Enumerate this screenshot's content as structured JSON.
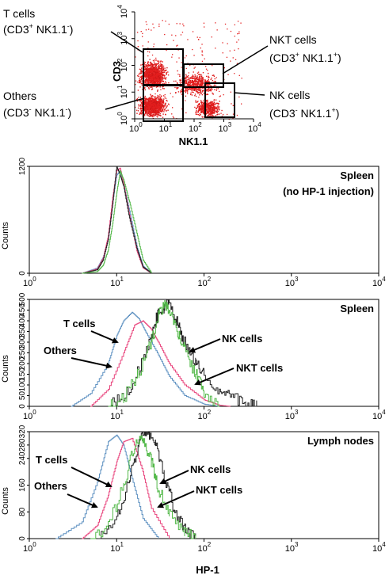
{
  "colors": {
    "t_cells": "#5b8fc0",
    "others": "#e8407a",
    "nk_cells": "#222222",
    "nkt_cells": "#52b848",
    "dots": "#e41f1f",
    "dots_dense": "#d01818"
  },
  "dot_plot": {
    "xlabel": "NK1.1",
    "ylabel": "CD3",
    "ticks": [
      "10",
      "10",
      "10",
      "10",
      "10"
    ],
    "tick_exponents": [
      "0",
      "1",
      "2",
      "3",
      "4"
    ],
    "gates": {
      "t_cells": {
        "name": "T cells",
        "pheno_pre": "(CD3",
        "pheno_sup1": "+",
        "pheno_mid": " NK1.1",
        "pheno_sup2": "-",
        "pheno_post": ")"
      },
      "others": {
        "name": "Others",
        "pheno_pre": "(CD3",
        "pheno_sup1": "-",
        "pheno_mid": " NK1.1",
        "pheno_sup2": "-",
        "pheno_post": ")"
      },
      "nkt_cells": {
        "name": "NKT cells",
        "pheno_pre": "(CD3",
        "pheno_sup1": "+",
        "pheno_mid": " NK1.1",
        "pheno_sup2": "+",
        "pheno_post": ")"
      },
      "nk_cells": {
        "name": "NK cells",
        "pheno_pre": "(CD3",
        "pheno_sup1": "-",
        "pheno_mid": " NK1.1",
        "pheno_sup2": "+",
        "pheno_post": ")"
      }
    }
  },
  "histograms": {
    "ylabel": "Counts",
    "xlabel": "HP-1",
    "xtick_base": "10",
    "xtick_exponents": [
      "0",
      "1",
      "2",
      "3",
      "4"
    ]
  },
  "chart_data": [
    {
      "type": "scatter",
      "title": "",
      "xlabel": "NK1.1",
      "ylabel": "CD3",
      "xscale": "log",
      "yscale": "log",
      "xlim": [
        1,
        10000
      ],
      "ylim": [
        1,
        10000
      ],
      "populations": [
        {
          "name": "T cells",
          "x_range": [
            1,
            15
          ],
          "y_range": [
            10,
            200
          ]
        },
        {
          "name": "Others",
          "x_range": [
            1,
            15
          ],
          "y_range": [
            1,
            10
          ]
        },
        {
          "name": "NKT cells",
          "x_range": [
            15,
            800
          ],
          "y_range": [
            6,
            70
          ]
        },
        {
          "name": "NK cells",
          "x_range": [
            80,
            1000
          ],
          "y_range": [
            1,
            7
          ]
        }
      ]
    },
    {
      "type": "line",
      "title": "Spleen",
      "subtitle": "(no HP-1 injection)",
      "xlabel": "",
      "ylabel": "Counts",
      "xscale": "log",
      "xlim": [
        1,
        10000
      ],
      "ylim": [
        0,
        1200
      ],
      "yticks": [
        "0",
        "1200"
      ],
      "series": [
        {
          "name": "T cells",
          "x": [
            4,
            6,
            7,
            8,
            9,
            10,
            11,
            12,
            14,
            17,
            20,
            25
          ],
          "y": [
            0,
            60,
            180,
            400,
            800,
            1100,
            1150,
            1000,
            700,
            300,
            80,
            0
          ]
        },
        {
          "name": "Others",
          "x": [
            4,
            6,
            7,
            8,
            9,
            10,
            11,
            12,
            14,
            17,
            20,
            25
          ],
          "y": [
            0,
            50,
            170,
            420,
            850,
            1150,
            1180,
            1000,
            650,
            250,
            60,
            0
          ]
        },
        {
          "name": "NK cells",
          "x": [
            4,
            6,
            7,
            8,
            9,
            10,
            11,
            12,
            14,
            17,
            20,
            25
          ],
          "y": [
            0,
            40,
            150,
            380,
            780,
            1200,
            1100,
            980,
            620,
            280,
            70,
            0
          ]
        },
        {
          "name": "NKT cells",
          "x": [
            4,
            6,
            7,
            8,
            9,
            10,
            11,
            12,
            14,
            17,
            20,
            25
          ],
          "y": [
            0,
            20,
            90,
            260,
            560,
            900,
            1150,
            1050,
            800,
            450,
            150,
            0
          ]
        }
      ]
    },
    {
      "type": "line",
      "title": "Spleen",
      "xlabel": "",
      "ylabel": "Counts",
      "xscale": "log",
      "xlim": [
        1,
        10000
      ],
      "ylim": [
        0,
        500
      ],
      "yticks": [
        "0",
        "50",
        "100",
        "150",
        "200",
        "250",
        "300",
        "350",
        "400",
        "450",
        "500"
      ],
      "series": [
        {
          "name": "T cells",
          "x": [
            3,
            5,
            8,
            10,
            12,
            15,
            18,
            22,
            30,
            40,
            60,
            100,
            150
          ],
          "y": [
            0,
            60,
            200,
            330,
            400,
            440,
            410,
            340,
            240,
            140,
            50,
            10,
            0
          ]
        },
        {
          "name": "Others",
          "x": [
            5,
            8,
            12,
            16,
            20,
            25,
            30,
            40,
            60,
            100,
            150,
            200
          ],
          "y": [
            0,
            80,
            250,
            380,
            400,
            360,
            300,
            200,
            100,
            30,
            5,
            0
          ]
        },
        {
          "name": "NK cells",
          "x": [
            8,
            12,
            18,
            25,
            30,
            35,
            40,
            50,
            60,
            80,
            100,
            150,
            200,
            300,
            400
          ],
          "y": [
            0,
            40,
            170,
            330,
            440,
            460,
            500,
            380,
            300,
            210,
            150,
            70,
            40,
            20,
            0
          ]
        },
        {
          "name": "NKT cells",
          "x": [
            8,
            12,
            18,
            25,
            30,
            35,
            40,
            50,
            60,
            80,
            100,
            150
          ],
          "y": [
            0,
            40,
            160,
            300,
            420,
            480,
            450,
            350,
            260,
            150,
            70,
            0
          ]
        }
      ]
    },
    {
      "type": "line",
      "title": "Lymph nodes",
      "xlabel": "HP-1",
      "ylabel": "Counts",
      "xscale": "log",
      "xlim": [
        1,
        10000
      ],
      "ylim": [
        0,
        320
      ],
      "yticks": [
        "0",
        "80",
        "160",
        "240",
        "280",
        "320"
      ],
      "series": [
        {
          "name": "T cells",
          "x": [
            2,
            4,
            6,
            8,
            10,
            12,
            15,
            20,
            30
          ],
          "y": [
            0,
            50,
            170,
            290,
            310,
            280,
            180,
            60,
            0
          ]
        },
        {
          "name": "Others",
          "x": [
            4,
            6,
            8,
            10,
            12,
            15,
            20,
            25,
            40
          ],
          "y": [
            0,
            40,
            130,
            230,
            290,
            300,
            200,
            90,
            0
          ]
        },
        {
          "name": "NK cells",
          "x": [
            6,
            10,
            14,
            18,
            22,
            28,
            35,
            45,
            60,
            80
          ],
          "y": [
            0,
            60,
            180,
            290,
            320,
            280,
            190,
            90,
            30,
            0
          ]
        },
        {
          "name": "NKT cells",
          "x": [
            5,
            8,
            12,
            16,
            20,
            25,
            30,
            40,
            60,
            80
          ],
          "y": [
            0,
            40,
            160,
            280,
            300,
            230,
            150,
            70,
            20,
            0
          ]
        }
      ]
    }
  ]
}
